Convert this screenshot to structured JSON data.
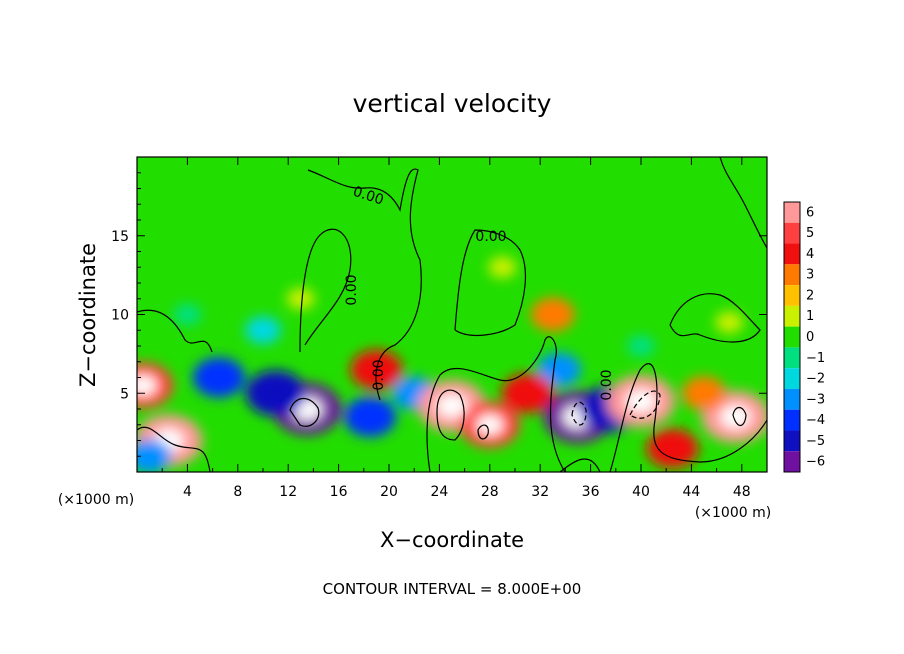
{
  "chart_data": {
    "type": "heatmap",
    "title": "vertical velocity",
    "xlabel": "X−coordinate",
    "ylabel": "Z−coordinate",
    "x_unit": "(×1000 m)",
    "xlim": [
      0,
      50
    ],
    "ylim": [
      0,
      20
    ],
    "x_ticks": [
      4,
      8,
      12,
      16,
      20,
      24,
      28,
      32,
      36,
      40,
      44,
      48
    ],
    "y_ticks": [
      5,
      10,
      15
    ],
    "colorbar": {
      "levels": [
        6,
        5,
        4,
        3,
        2,
        1,
        0,
        -1,
        -2,
        -3,
        -4,
        -5,
        -6
      ],
      "level_labels": [
        "6",
        "5",
        "4",
        "3",
        "2",
        "1",
        "0",
        "−1",
        "−2",
        "−3",
        "−4",
        "−5",
        "−6"
      ],
      "colors": [
        "#ff9999",
        "#ff4040",
        "#f01010",
        "#ff7a00",
        "#ffc000",
        "#c8f000",
        "#22dd00",
        "#00e080",
        "#00d8e0",
        "#0090ff",
        "#0030ff",
        "#1010c0",
        "#7010a0"
      ]
    },
    "contour_labels": [
      "0.00",
      "0.00",
      "0.00",
      "0.00",
      "0.00"
    ],
    "note": "CONTOUR INTERVAL = 8.000E+00",
    "features": [
      {
        "x": 13.5,
        "z": 4.0,
        "value": -6
      },
      {
        "x": 11.0,
        "z": 5.0,
        "value": -5
      },
      {
        "x": 6.5,
        "z": 6.0,
        "value": -4
      },
      {
        "x": 18.5,
        "z": 3.5,
        "value": -4
      },
      {
        "x": 22.0,
        "z": 5.0,
        "value": -3
      },
      {
        "x": 10.0,
        "z": 9.0,
        "value": -2
      },
      {
        "x": 35.0,
        "z": 3.5,
        "value": -6
      },
      {
        "x": 37.5,
        "z": 4.0,
        "value": -5
      },
      {
        "x": 33.5,
        "z": 6.5,
        "value": -3
      },
      {
        "x": 40.0,
        "z": 4.5,
        "value": 6
      },
      {
        "x": 25.0,
        "z": 4.2,
        "value": 6
      },
      {
        "x": 28.0,
        "z": 3.0,
        "value": 5
      },
      {
        "x": 31.0,
        "z": 5.0,
        "value": 4
      },
      {
        "x": 2.5,
        "z": 2.0,
        "value": 6
      },
      {
        "x": 0.5,
        "z": 5.5,
        "value": 5
      },
      {
        "x": 19.0,
        "z": 6.5,
        "value": 4
      },
      {
        "x": 47.5,
        "z": 3.5,
        "value": 6
      },
      {
        "x": 45.0,
        "z": 5.0,
        "value": 3
      },
      {
        "x": 42.5,
        "z": 1.5,
        "value": 4
      },
      {
        "x": 13.0,
        "z": 11.0,
        "value": 1
      },
      {
        "x": 29.0,
        "z": 13.0,
        "value": 1
      },
      {
        "x": 33.0,
        "z": 10.0,
        "value": 3
      },
      {
        "x": 4.0,
        "z": 10.0,
        "value": -1
      },
      {
        "x": 40.0,
        "z": 8.0,
        "value": -1
      },
      {
        "x": 1.0,
        "z": 1.0,
        "value": -3
      },
      {
        "x": 47.0,
        "z": 9.5,
        "value": 1
      }
    ]
  }
}
